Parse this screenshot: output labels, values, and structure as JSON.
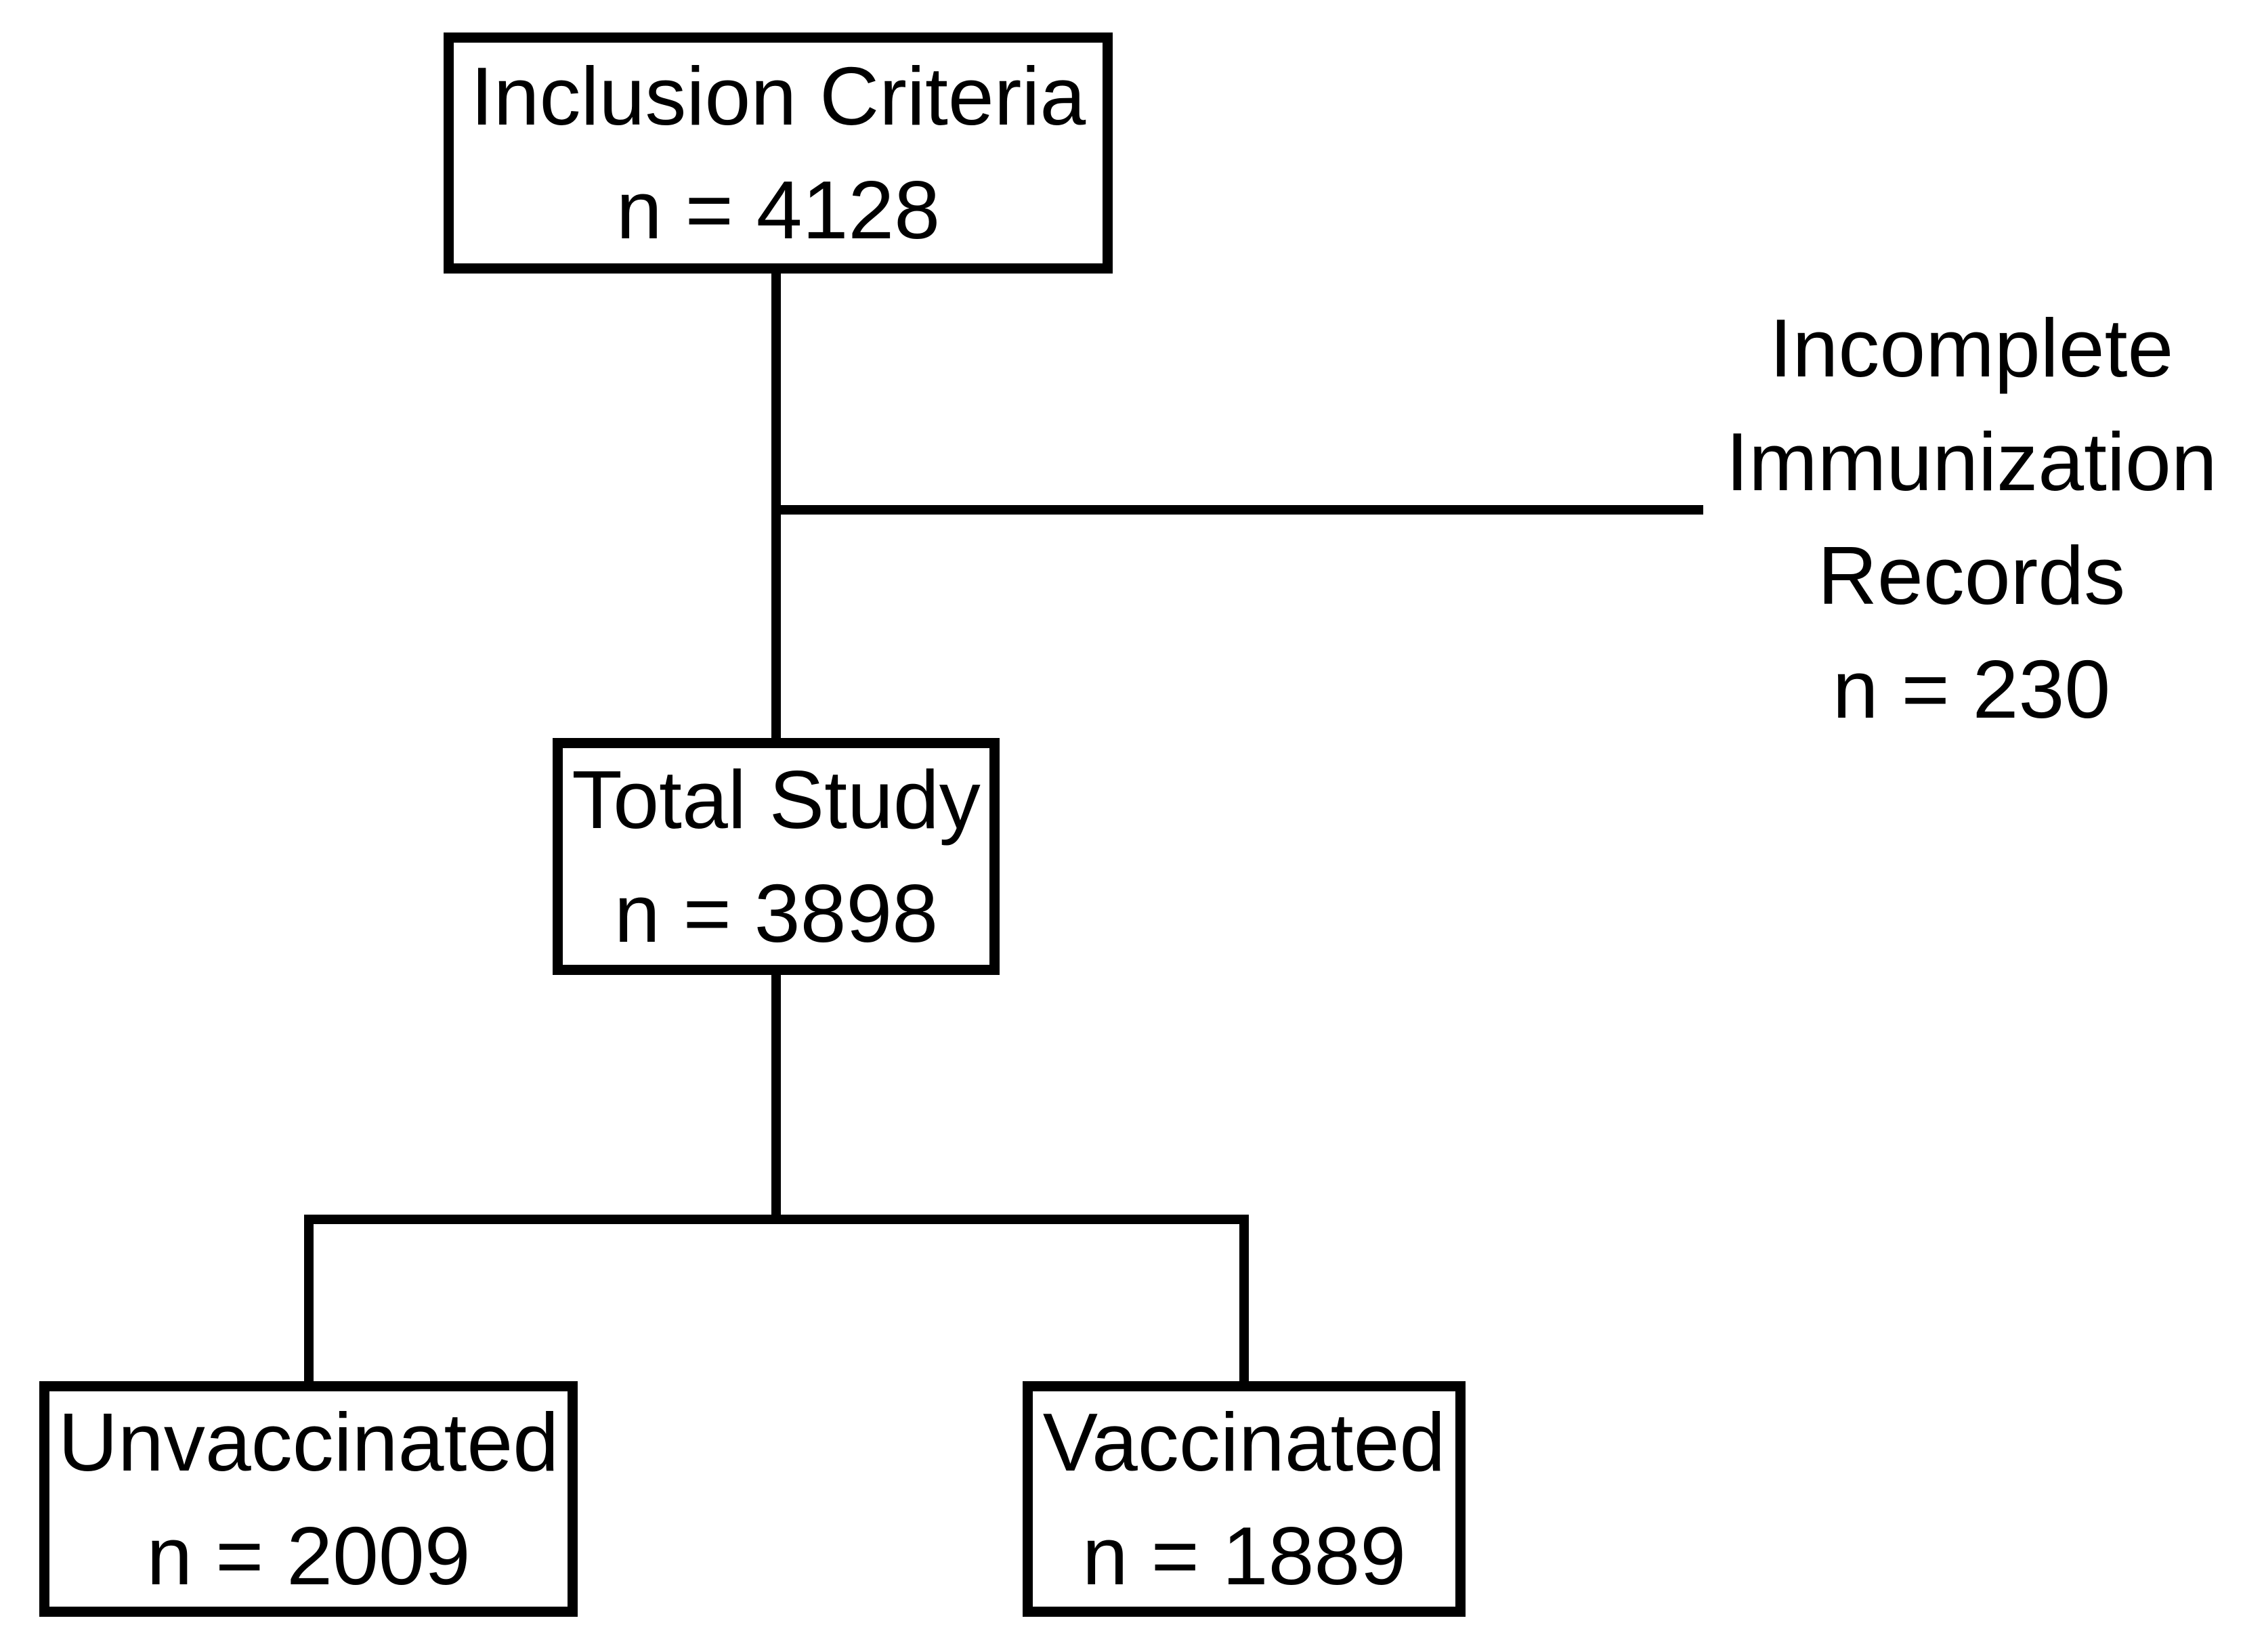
{
  "diagram": {
    "type": "flowchart",
    "background_color": "#ffffff",
    "line_color": "#000000",
    "text_color": "#000000",
    "nodes": {
      "inclusion": {
        "label": "Inclusion Criteria",
        "count": "n = 4128"
      },
      "excluded": {
        "lines": [
          "Incomplete",
          "Immunization",
          "Records"
        ],
        "count": "n = 230"
      },
      "total": {
        "label": "Total Study",
        "count": "n = 3898"
      },
      "unvaccinated": {
        "label": "Unvaccinated",
        "count": "n = 2009"
      },
      "vaccinated": {
        "label": "Vaccinated",
        "count": "n = 1889"
      }
    }
  }
}
